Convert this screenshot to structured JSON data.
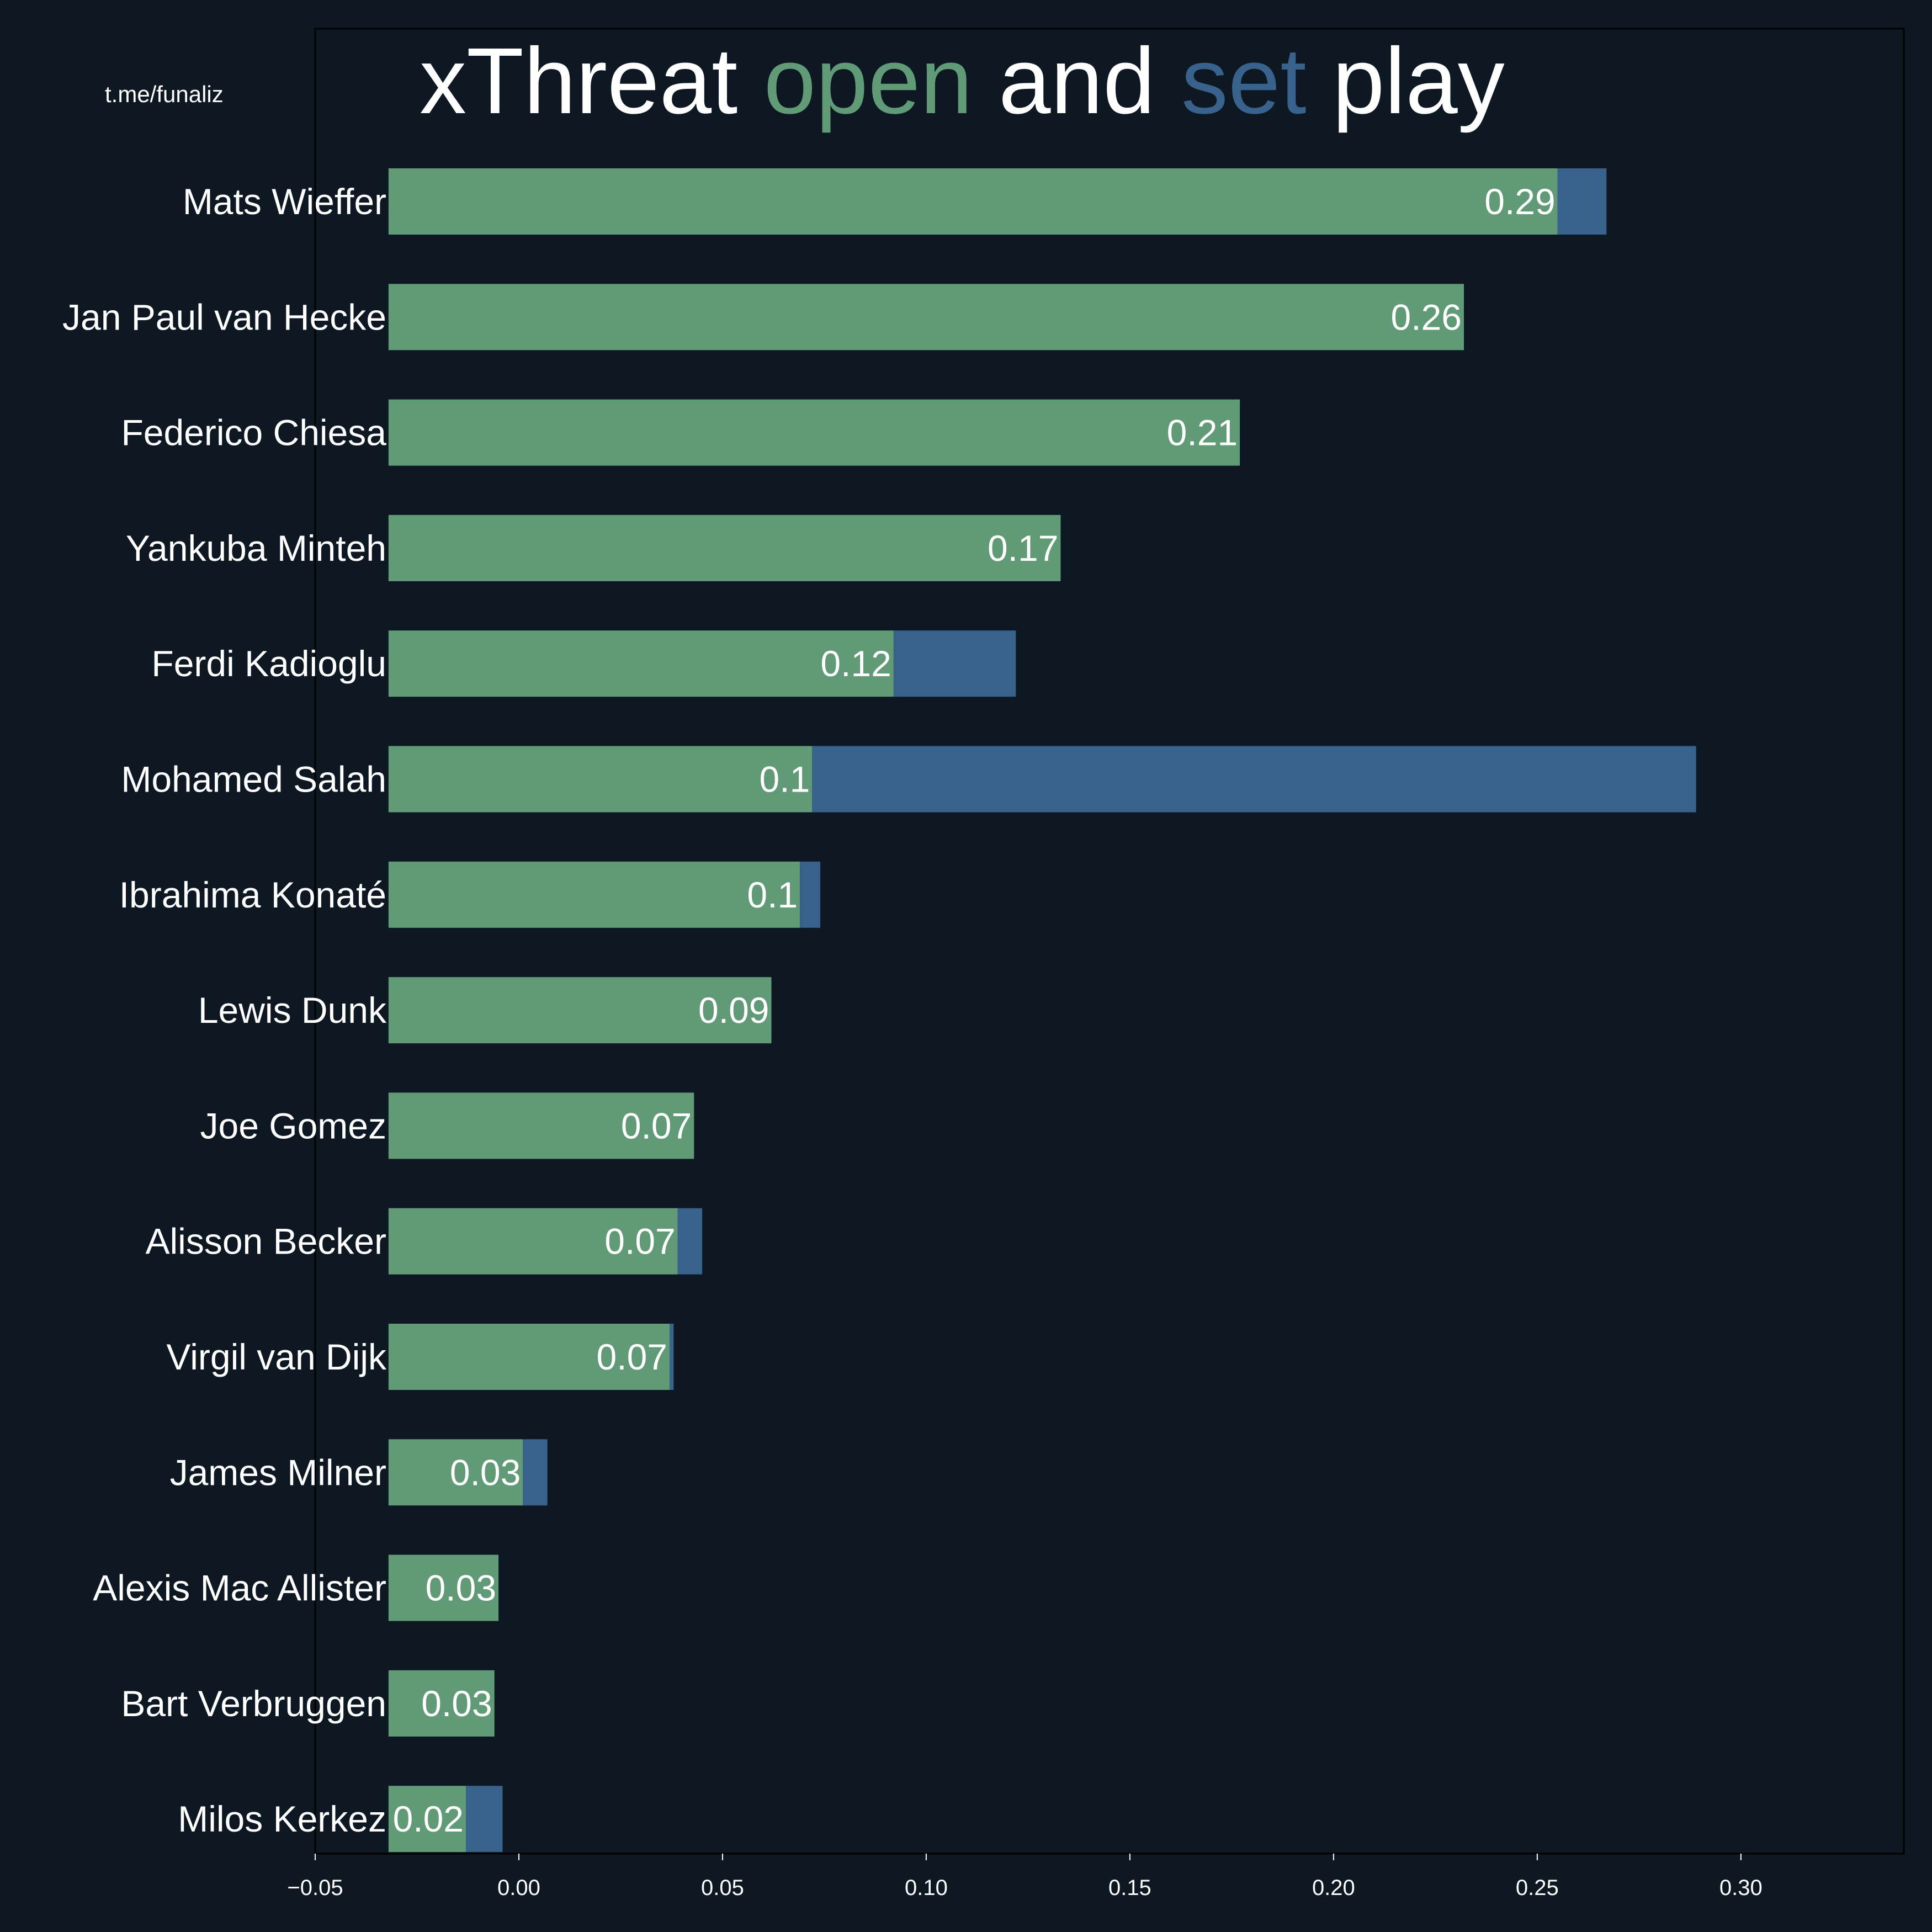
{
  "watermark": "t.me/funaliz",
  "colors": {
    "background": "#0e1823",
    "open": "#619a76",
    "set": "#38618c",
    "text": "#ffffff"
  },
  "chart_data": {
    "type": "bar",
    "orientation": "horizontal",
    "stacked": true,
    "title": {
      "parts": [
        {
          "text": "xThreat ",
          "color": "#ffffff"
        },
        {
          "text": "open",
          "color": "#619a76"
        },
        {
          "text": " and ",
          "color": "#ffffff"
        },
        {
          "text": "set",
          "color": "#38618c"
        },
        {
          "text": " play",
          "color": "#ffffff"
        }
      ]
    },
    "xlabel": "",
    "ylabel": "",
    "xlim": [
      -0.05,
      0.34
    ],
    "x_ticks": [
      -0.05,
      0.0,
      0.05,
      0.1,
      0.15,
      0.2,
      0.25,
      0.3
    ],
    "x_tick_labels": [
      "−0.05",
      "0.00",
      "0.05",
      "0.10",
      "0.15",
      "0.20",
      "0.25",
      "0.30"
    ],
    "bar_start": -0.032,
    "grid": false,
    "legend": "none",
    "categories": [
      "Mats Wieffer",
      "Jan Paul van Hecke",
      "Federico Chiesa",
      "Yankuba Minteh",
      "Ferdi Kadioglu",
      "Mohamed Salah",
      "Ibrahima Konaté",
      "Lewis Dunk",
      "Joe Gomez",
      "Alisson Becker",
      "Virgil van Dijk",
      "James Milner",
      "Alexis Mac Allister",
      "Bart Verbruggen",
      "Milos Kerkez"
    ],
    "series": [
      {
        "color": "#619a76",
        "values": [
          0.287,
          0.264,
          0.209,
          0.165,
          0.124,
          0.104,
          0.101,
          0.094,
          0.075,
          0.071,
          0.069,
          0.033,
          0.027,
          0.026,
          0.019
        ]
      },
      {
        "color": "#38618c",
        "values": [
          0.012,
          0.0,
          0.0,
          0.0,
          0.03,
          0.217,
          0.005,
          0.0,
          0.0,
          0.006,
          0.001,
          0.006,
          0.0,
          0.0,
          0.009
        ]
      }
    ],
    "data_labels": [
      "0.29",
      "0.26",
      "0.21",
      "0.17",
      "0.12",
      "0.1",
      "0.1",
      "0.09",
      "0.07",
      "0.07",
      "0.07",
      "0.03",
      "0.03",
      "0.03",
      "0.02"
    ]
  }
}
